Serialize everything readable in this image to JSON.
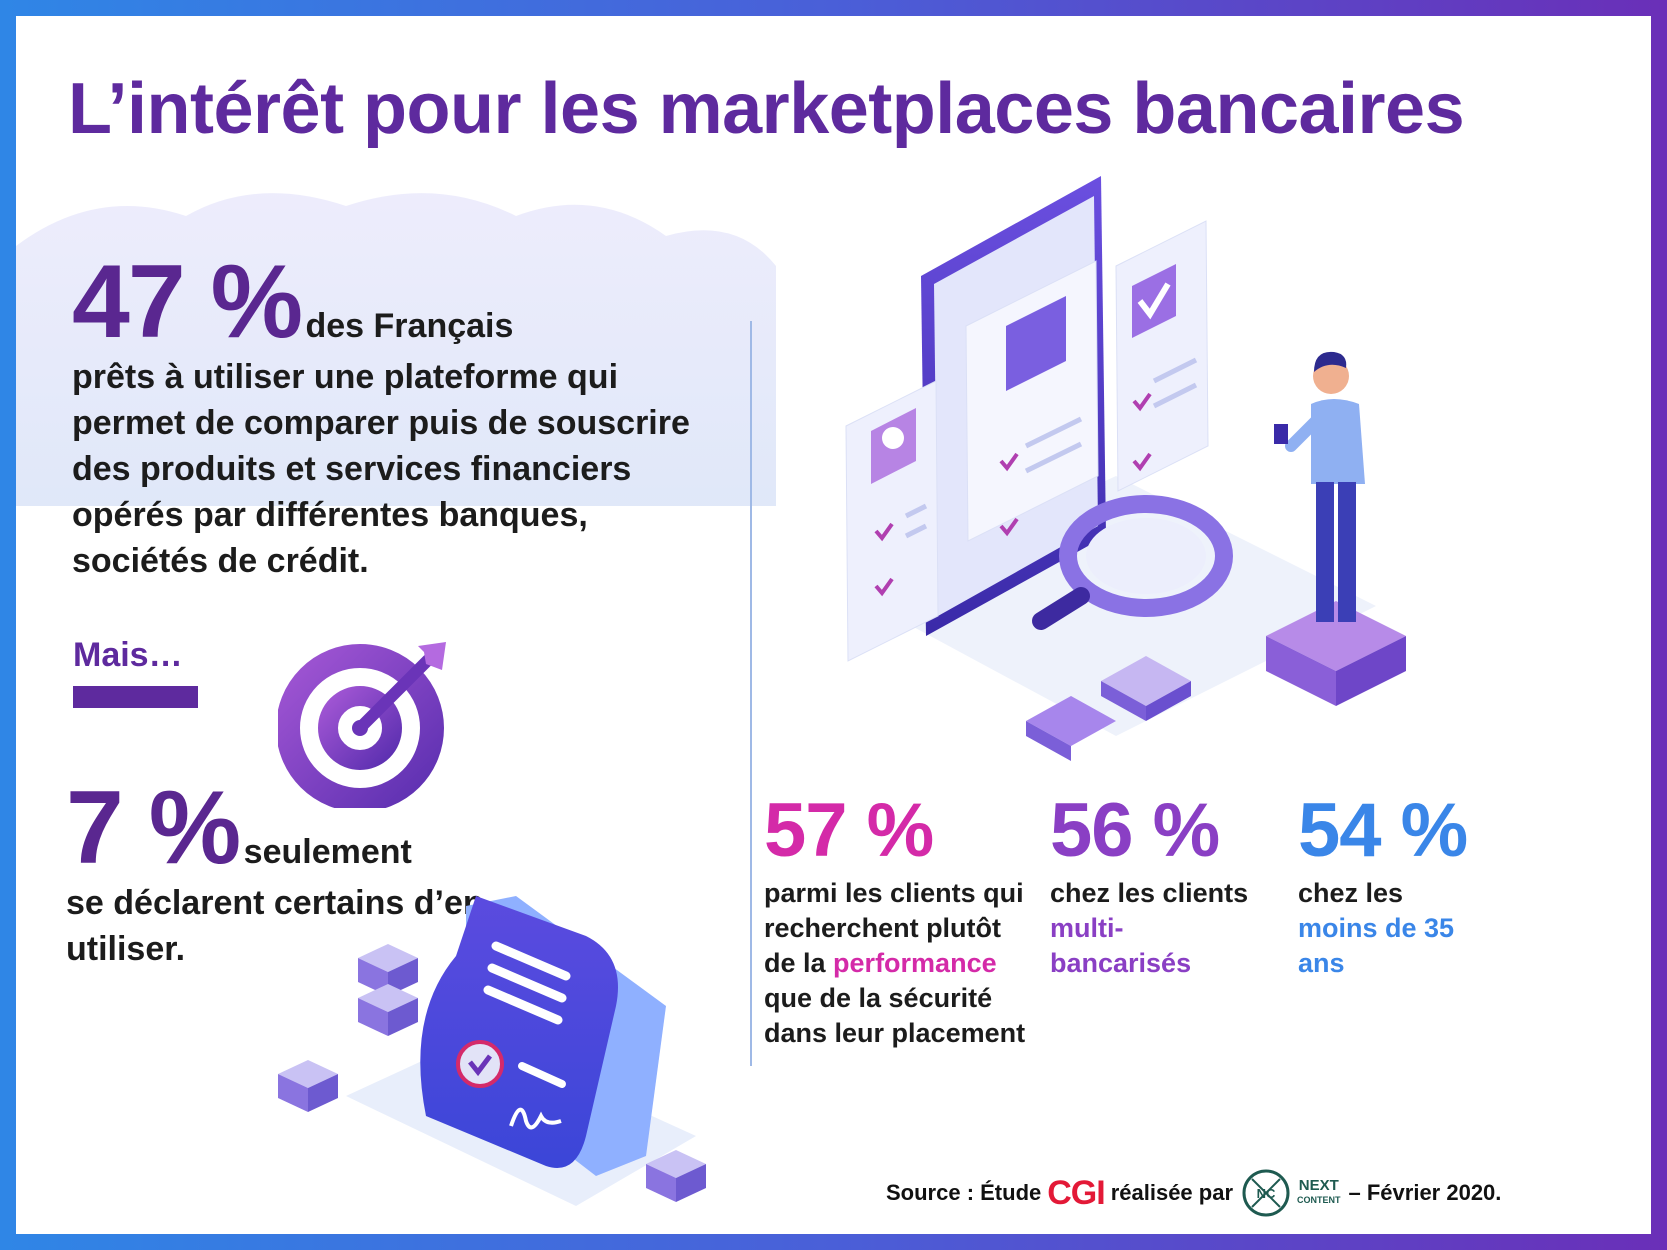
{
  "title": "L’intérêt pour les marketplaces bancaires",
  "stat_main": {
    "value": "47 %",
    "lead": "des Français",
    "text": "prêts à utiliser une plateforme qui permet de comparer puis de souscrire des produits et services financiers opérés par différentes banques, sociétés de crédit."
  },
  "mais": "Mais…",
  "stat_second": {
    "value": "7 %",
    "lead": "seulement",
    "text": "se déclarent certains d’en utiliser."
  },
  "kpis": [
    {
      "value": "57 %",
      "pre": "parmi les clients qui recherchent plutôt de la",
      "highlight": "performance",
      "post": "que de la sécurité dans leur placement",
      "color": "#d42aa8"
    },
    {
      "value": "56 %",
      "pre": "chez les clients",
      "highlight": "multi-bancarisés",
      "post": "",
      "color": "#8a3fc4"
    },
    {
      "value": "54 %",
      "pre": "chez les",
      "highlight": "moins de 35 ans",
      "post": "",
      "color": "#3a86e8"
    }
  ],
  "source": {
    "prefix": "Source : Étude",
    "brand": "CGI",
    "middle": "réalisée par",
    "partner_monogram": "NC",
    "partner_name": "NEXT",
    "partner_sub": "CONTENT",
    "suffix": "– Février 2020."
  },
  "illustrations": {
    "main": "phone-checklist-with-person-icon",
    "target": "target-icon",
    "laptop": "laptop-signed-document-icon"
  },
  "colors": {
    "primary_purple": "#5e2a9e",
    "magenta": "#d42aa8",
    "violet": "#8a3fc4",
    "blue": "#3a86e8",
    "brand_red": "#e31937"
  }
}
